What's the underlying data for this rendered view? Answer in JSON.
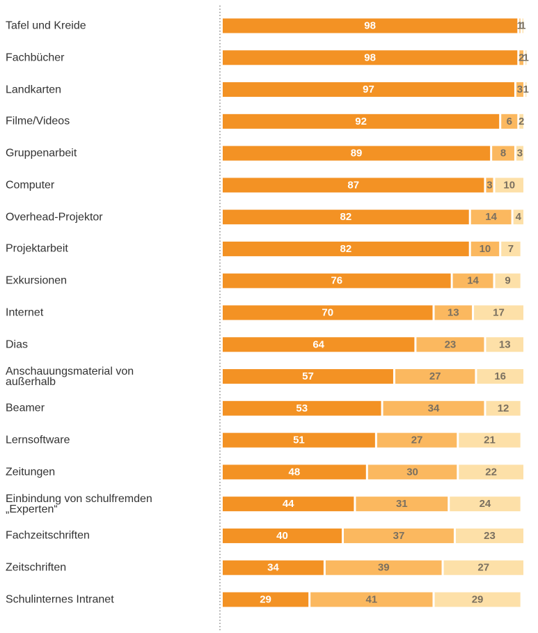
{
  "chart_data": {
    "type": "stacked_bar_horizontal",
    "categories": [
      "Tafel und Kreide",
      "Fachbücher",
      "Landkarten",
      "Filme/Videos",
      "Gruppenarbeit",
      "Computer",
      "Overhead-Projektor",
      "Projektarbeit",
      "Exkursionen",
      "Internet",
      "Dias",
      "Anschauungsmaterial von außerhalb",
      "Beamer",
      "Lernsoftware",
      "Zeitungen",
      "Einbindung von schulfremden „Experten“",
      "Fachzeitschriften",
      "Zeitschriften",
      "Schulinternes Intranet"
    ],
    "series": [
      {
        "color": "#f39224",
        "values": [
          98,
          98,
          97,
          92,
          89,
          87,
          82,
          82,
          76,
          70,
          64,
          57,
          53,
          51,
          48,
          44,
          40,
          34,
          29
        ]
      },
      {
        "color": "#fbb85f",
        "values": [
          1,
          2,
          3,
          6,
          8,
          3,
          14,
          10,
          14,
          13,
          23,
          27,
          34,
          27,
          30,
          31,
          37,
          39,
          41
        ]
      },
      {
        "color": "#fde0a8",
        "values": [
          1,
          1,
          1,
          2,
          3,
          10,
          4,
          7,
          9,
          17,
          13,
          16,
          12,
          21,
          22,
          24,
          23,
          27,
          29
        ]
      }
    ],
    "xlim": [
      0,
      100
    ]
  }
}
